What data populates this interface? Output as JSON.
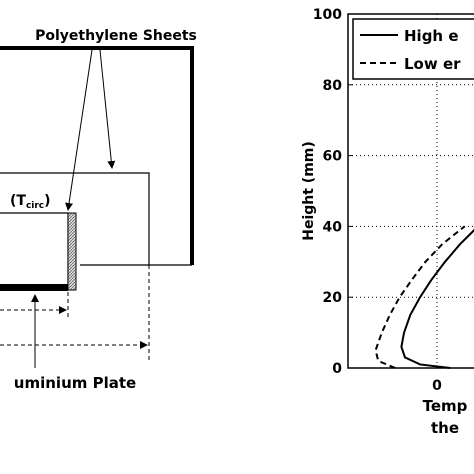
{
  "diagram": {
    "sheets_label": "Polyethylene Sheets",
    "temp_label": "(T",
    "temp_label_sub": "circ",
    "temp_label_end": ")",
    "plate_label": "uminium Plate"
  },
  "chart_data": {
    "type": "line",
    "y_label": "Height (mm)",
    "x_label": [
      "Temp",
      "the"
    ],
    "ylim": [
      0,
      100
    ],
    "yticks": [
      0,
      20,
      40,
      60,
      80,
      100
    ],
    "xlim": [
      -1,
      1
    ],
    "xticks": [
      0
    ],
    "grid": true,
    "series": [
      {
        "name": "High e",
        "color": "#000000",
        "dash": false,
        "x": [
          0.15,
          -0.19,
          -0.36,
          -0.4,
          -0.37,
          -0.3,
          -0.19,
          -0.06,
          0.09,
          0.26,
          0.46
        ],
        "values": [
          0,
          1,
          3,
          6,
          10,
          15,
          20,
          25,
          30,
          35,
          40
        ]
      },
      {
        "name": "Low er",
        "color": "#000000",
        "dash": true,
        "x": [
          -0.47,
          -0.66,
          -0.69,
          -0.62,
          -0.53,
          -0.42,
          -0.28,
          -0.13,
          0.06,
          0.31
        ],
        "values": [
          0,
          2,
          5,
          10,
          15,
          20,
          25,
          30,
          35,
          40
        ]
      }
    ]
  }
}
